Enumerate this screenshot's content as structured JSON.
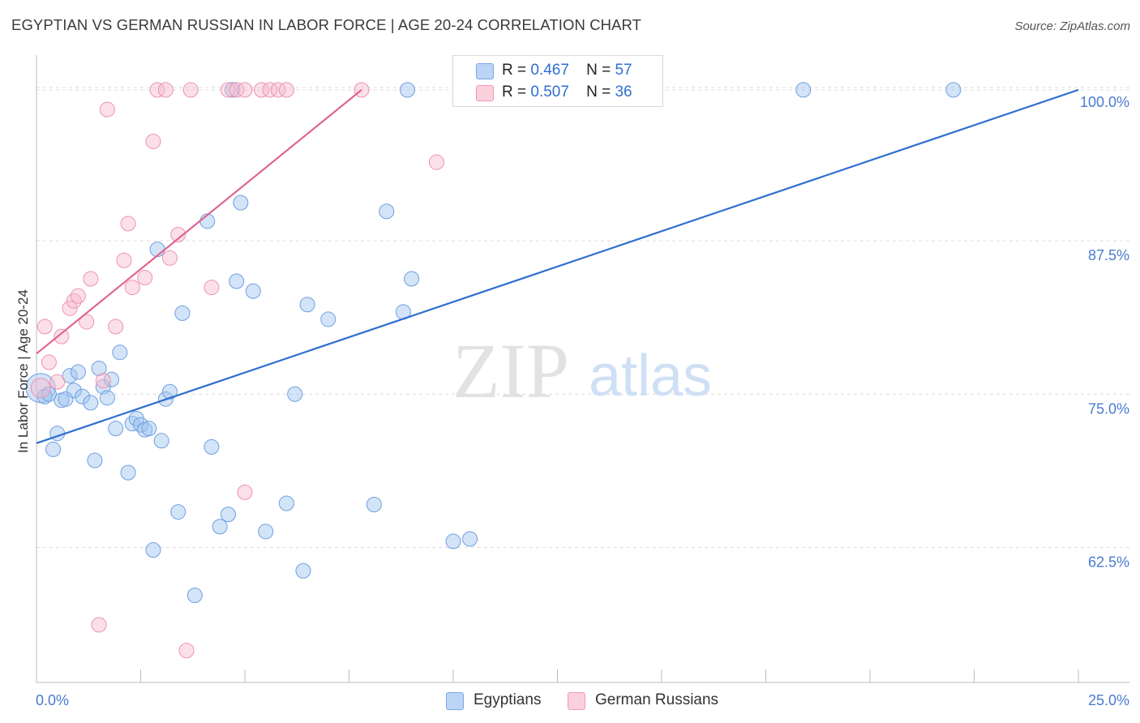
{
  "title": "EGYPTIAN VS GERMAN RUSSIAN IN LABOR FORCE | AGE 20-24 CORRELATION CHART",
  "source": "Source: ZipAtlas.com",
  "watermark": {
    "zip": "ZIP",
    "atlas": "atlas"
  },
  "legend": {
    "r_label": "R =",
    "n_label": "N =",
    "rows": [
      {
        "r": "0.467",
        "n": "57"
      },
      {
        "r": "0.507",
        "n": "36"
      }
    ]
  },
  "chart_data": {
    "type": "scatter",
    "title": "EGYPTIAN VS GERMAN RUSSIAN IN LABOR FORCE | AGE 20-24 CORRELATION CHART",
    "xlabel": "",
    "ylabel": "In Labor Force | Age 20-24",
    "xlim": [
      0,
      25
    ],
    "ylim": [
      51.5,
      102.5
    ],
    "x_tick_labels": [
      "0.0%",
      "25.0%"
    ],
    "y_ticks": [
      62.5,
      75.0,
      87.5,
      100.0
    ],
    "y_tick_labels": [
      "62.5%",
      "75.0%",
      "87.5%",
      "100.0%"
    ],
    "grid": true,
    "legend_position": "top-center",
    "colors": {
      "blue": "#4a86e8",
      "pink": "#e8749a",
      "blue_line": "#2f6fd0",
      "pink_line": "#e0658e"
    },
    "series": [
      {
        "name": "Egyptians",
        "color": "blue",
        "trend": {
          "x0": 0.0,
          "y0": 71.0,
          "x1": 25.0,
          "y1": 99.8
        },
        "points": [
          [
            0.1,
            75.5
          ],
          [
            0.2,
            74.8
          ],
          [
            0.3,
            75.0
          ],
          [
            0.4,
            70.5
          ],
          [
            0.5,
            71.8
          ],
          [
            0.6,
            74.5
          ],
          [
            0.7,
            74.6
          ],
          [
            0.8,
            76.5
          ],
          [
            0.9,
            75.3
          ],
          [
            1.0,
            76.8
          ],
          [
            1.1,
            74.8
          ],
          [
            1.3,
            74.3
          ],
          [
            1.4,
            69.6
          ],
          [
            1.5,
            77.1
          ],
          [
            1.6,
            75.6
          ],
          [
            1.7,
            74.7
          ],
          [
            1.8,
            76.2
          ],
          [
            1.9,
            72.2
          ],
          [
            2.0,
            78.4
          ],
          [
            2.2,
            68.6
          ],
          [
            2.3,
            72.6
          ],
          [
            2.4,
            73.0
          ],
          [
            2.5,
            72.5
          ],
          [
            2.6,
            72.1
          ],
          [
            2.7,
            72.2
          ],
          [
            2.8,
            62.3
          ],
          [
            2.9,
            86.8
          ],
          [
            3.0,
            71.2
          ],
          [
            3.1,
            74.6
          ],
          [
            3.2,
            75.2
          ],
          [
            3.4,
            65.4
          ],
          [
            3.5,
            81.6
          ],
          [
            3.8,
            58.6
          ],
          [
            4.1,
            89.1
          ],
          [
            4.2,
            70.7
          ],
          [
            4.4,
            64.2
          ],
          [
            4.6,
            65.2
          ],
          [
            4.7,
            99.8
          ],
          [
            4.8,
            84.2
          ],
          [
            4.9,
            90.6
          ],
          [
            5.2,
            83.4
          ],
          [
            5.5,
            63.8
          ],
          [
            6.0,
            66.1
          ],
          [
            6.2,
            75.0
          ],
          [
            6.4,
            60.6
          ],
          [
            6.5,
            82.3
          ],
          [
            7.0,
            81.1
          ],
          [
            8.1,
            66.0
          ],
          [
            8.4,
            89.9
          ],
          [
            8.8,
            81.7
          ],
          [
            8.9,
            99.8
          ],
          [
            9.0,
            84.4
          ],
          [
            10.0,
            63.0
          ],
          [
            10.4,
            63.2
          ],
          [
            13.5,
            99.8
          ],
          [
            18.4,
            99.8
          ],
          [
            22.0,
            99.8
          ]
        ]
      },
      {
        "name": "German Russians",
        "color": "pink",
        "trend": {
          "x0": 0.0,
          "y0": 78.3,
          "x1": 7.8,
          "y1": 99.8
        },
        "points": [
          [
            0.1,
            75.5
          ],
          [
            0.2,
            80.5
          ],
          [
            0.3,
            77.6
          ],
          [
            0.5,
            76.0
          ],
          [
            0.6,
            79.7
          ],
          [
            0.8,
            82.0
          ],
          [
            0.9,
            82.6
          ],
          [
            1.0,
            83.0
          ],
          [
            1.2,
            80.9
          ],
          [
            1.3,
            84.4
          ],
          [
            1.5,
            56.2
          ],
          [
            1.6,
            76.1
          ],
          [
            1.7,
            98.2
          ],
          [
            1.9,
            80.5
          ],
          [
            2.1,
            85.9
          ],
          [
            2.2,
            88.9
          ],
          [
            2.3,
            83.7
          ],
          [
            2.6,
            84.5
          ],
          [
            2.8,
            95.6
          ],
          [
            2.9,
            99.8
          ],
          [
            3.1,
            99.8
          ],
          [
            3.2,
            86.1
          ],
          [
            3.4,
            88.0
          ],
          [
            3.6,
            54.1
          ],
          [
            3.7,
            99.8
          ],
          [
            4.2,
            83.7
          ],
          [
            4.6,
            99.8
          ],
          [
            4.8,
            99.8
          ],
          [
            5.0,
            99.8
          ],
          [
            5.0,
            67.0
          ],
          [
            5.4,
            99.8
          ],
          [
            5.6,
            99.8
          ],
          [
            5.8,
            99.8
          ],
          [
            6.0,
            99.8
          ],
          [
            7.8,
            99.8
          ],
          [
            9.6,
            93.9
          ]
        ]
      }
    ]
  }
}
